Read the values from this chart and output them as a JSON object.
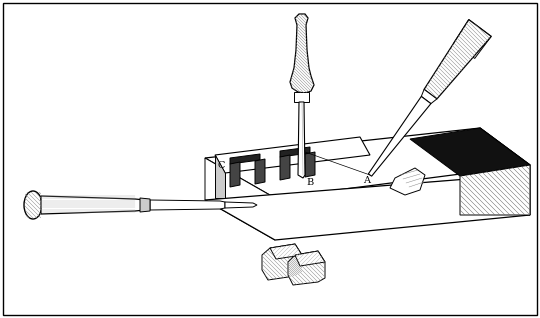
{
  "background_color": "#ffffff",
  "line_color": "#000000",
  "figsize": [
    5.4,
    3.18
  ],
  "dpi": 100,
  "label_A": "A",
  "label_B": "B",
  "label_C": "C",
  "label_fontsize": 7,
  "lw": 0.7,
  "hatch_color": "#555555",
  "light_gray": "#cccccc",
  "mid_gray": "#888888",
  "dark_gray": "#333333"
}
